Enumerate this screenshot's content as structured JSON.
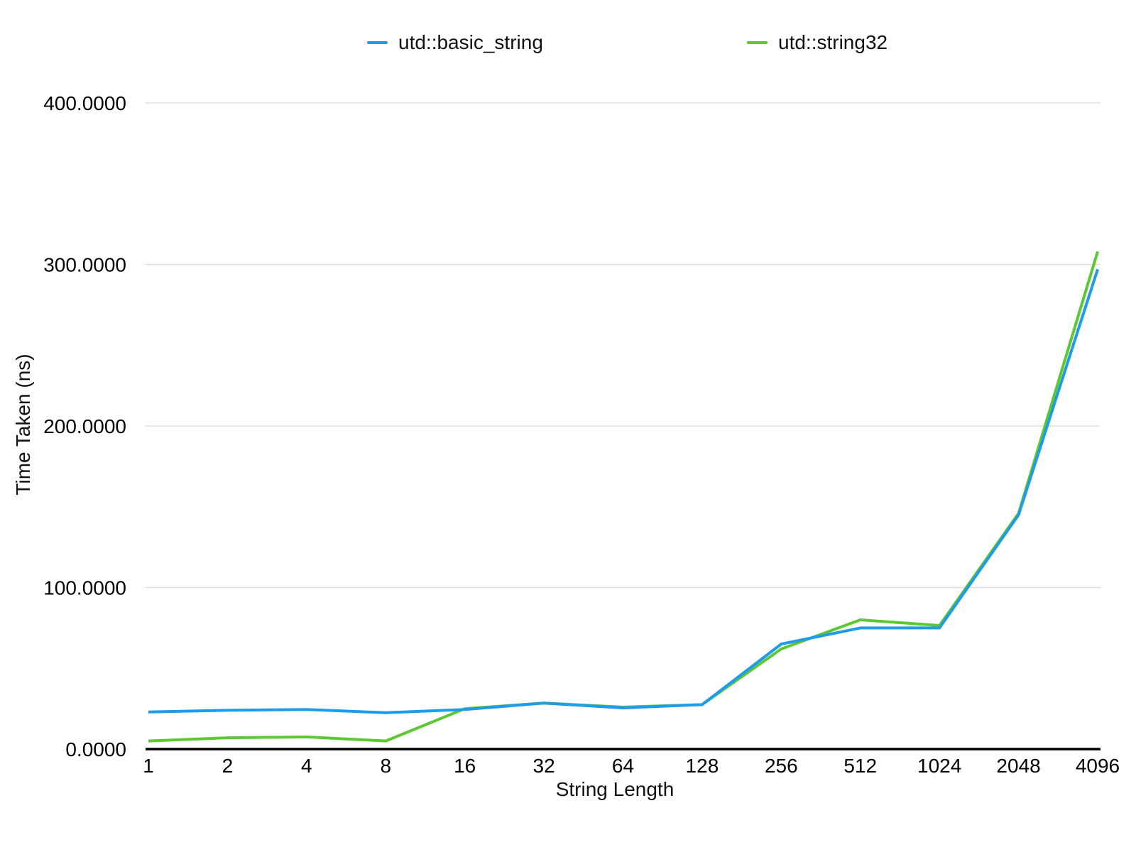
{
  "page": {
    "background": "#ffffff"
  },
  "chart_data": {
    "type": "line",
    "title": "",
    "xlabel": "String Length",
    "ylabel": "Time Taken (ns)",
    "categories": [
      "1",
      "2",
      "4",
      "8",
      "16",
      "32",
      "64",
      "128",
      "256",
      "512",
      "1024",
      "2048",
      "4096"
    ],
    "x_scale": "categorical (powers of 2)",
    "ylim": [
      0,
      400
    ],
    "y_ticks": [
      "0.0000",
      "100.0000",
      "200.0000",
      "300.0000",
      "400.0000"
    ],
    "grid": true,
    "legend_position": "top",
    "series": [
      {
        "name": "utd::basic_string",
        "color": "#1e9be9",
        "values": [
          23,
          24,
          24.5,
          22.5,
          24.5,
          28.5,
          25.5,
          27.5,
          65,
          75,
          75,
          145,
          297
        ]
      },
      {
        "name": "utd::string32",
        "color": "#5cc832",
        "values": [
          5,
          7,
          7.5,
          5,
          25,
          28.5,
          26,
          27.5,
          62,
          80,
          76.5,
          146,
          308
        ]
      }
    ],
    "axis_color": "#000000",
    "gridline_color": "#d9d9d9",
    "text_color": "#000000"
  }
}
